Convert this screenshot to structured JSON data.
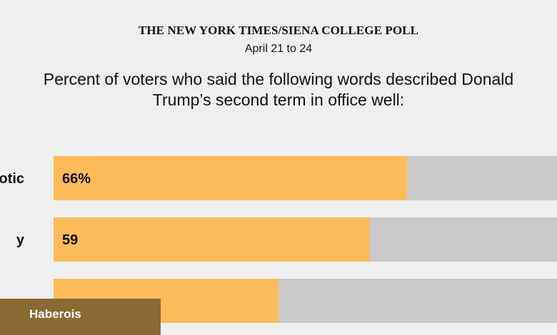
{
  "header": {
    "source": "THE NEW YORK TIMES/SIENA COLLEGE POLL",
    "dates": "April 21 to 24"
  },
  "badge": {
    "label": "Haberois"
  },
  "colors": {
    "bar_fill": "#fbbb5b",
    "bar_remainder": "#c9c9c9",
    "background": "#efefef",
    "badge": "#8a6a35"
  },
  "chart_data": {
    "type": "bar",
    "orientation": "horizontal",
    "stacked_to_100": true,
    "title": "Percent of voters who said the following words described Donald Trump’s second term in office well:",
    "categories": [
      "otic",
      "y",
      ""
    ],
    "values": [
      66,
      59,
      42
    ],
    "data_labels": [
      "66%",
      "59",
      ""
    ],
    "xlim": [
      0,
      100
    ]
  }
}
